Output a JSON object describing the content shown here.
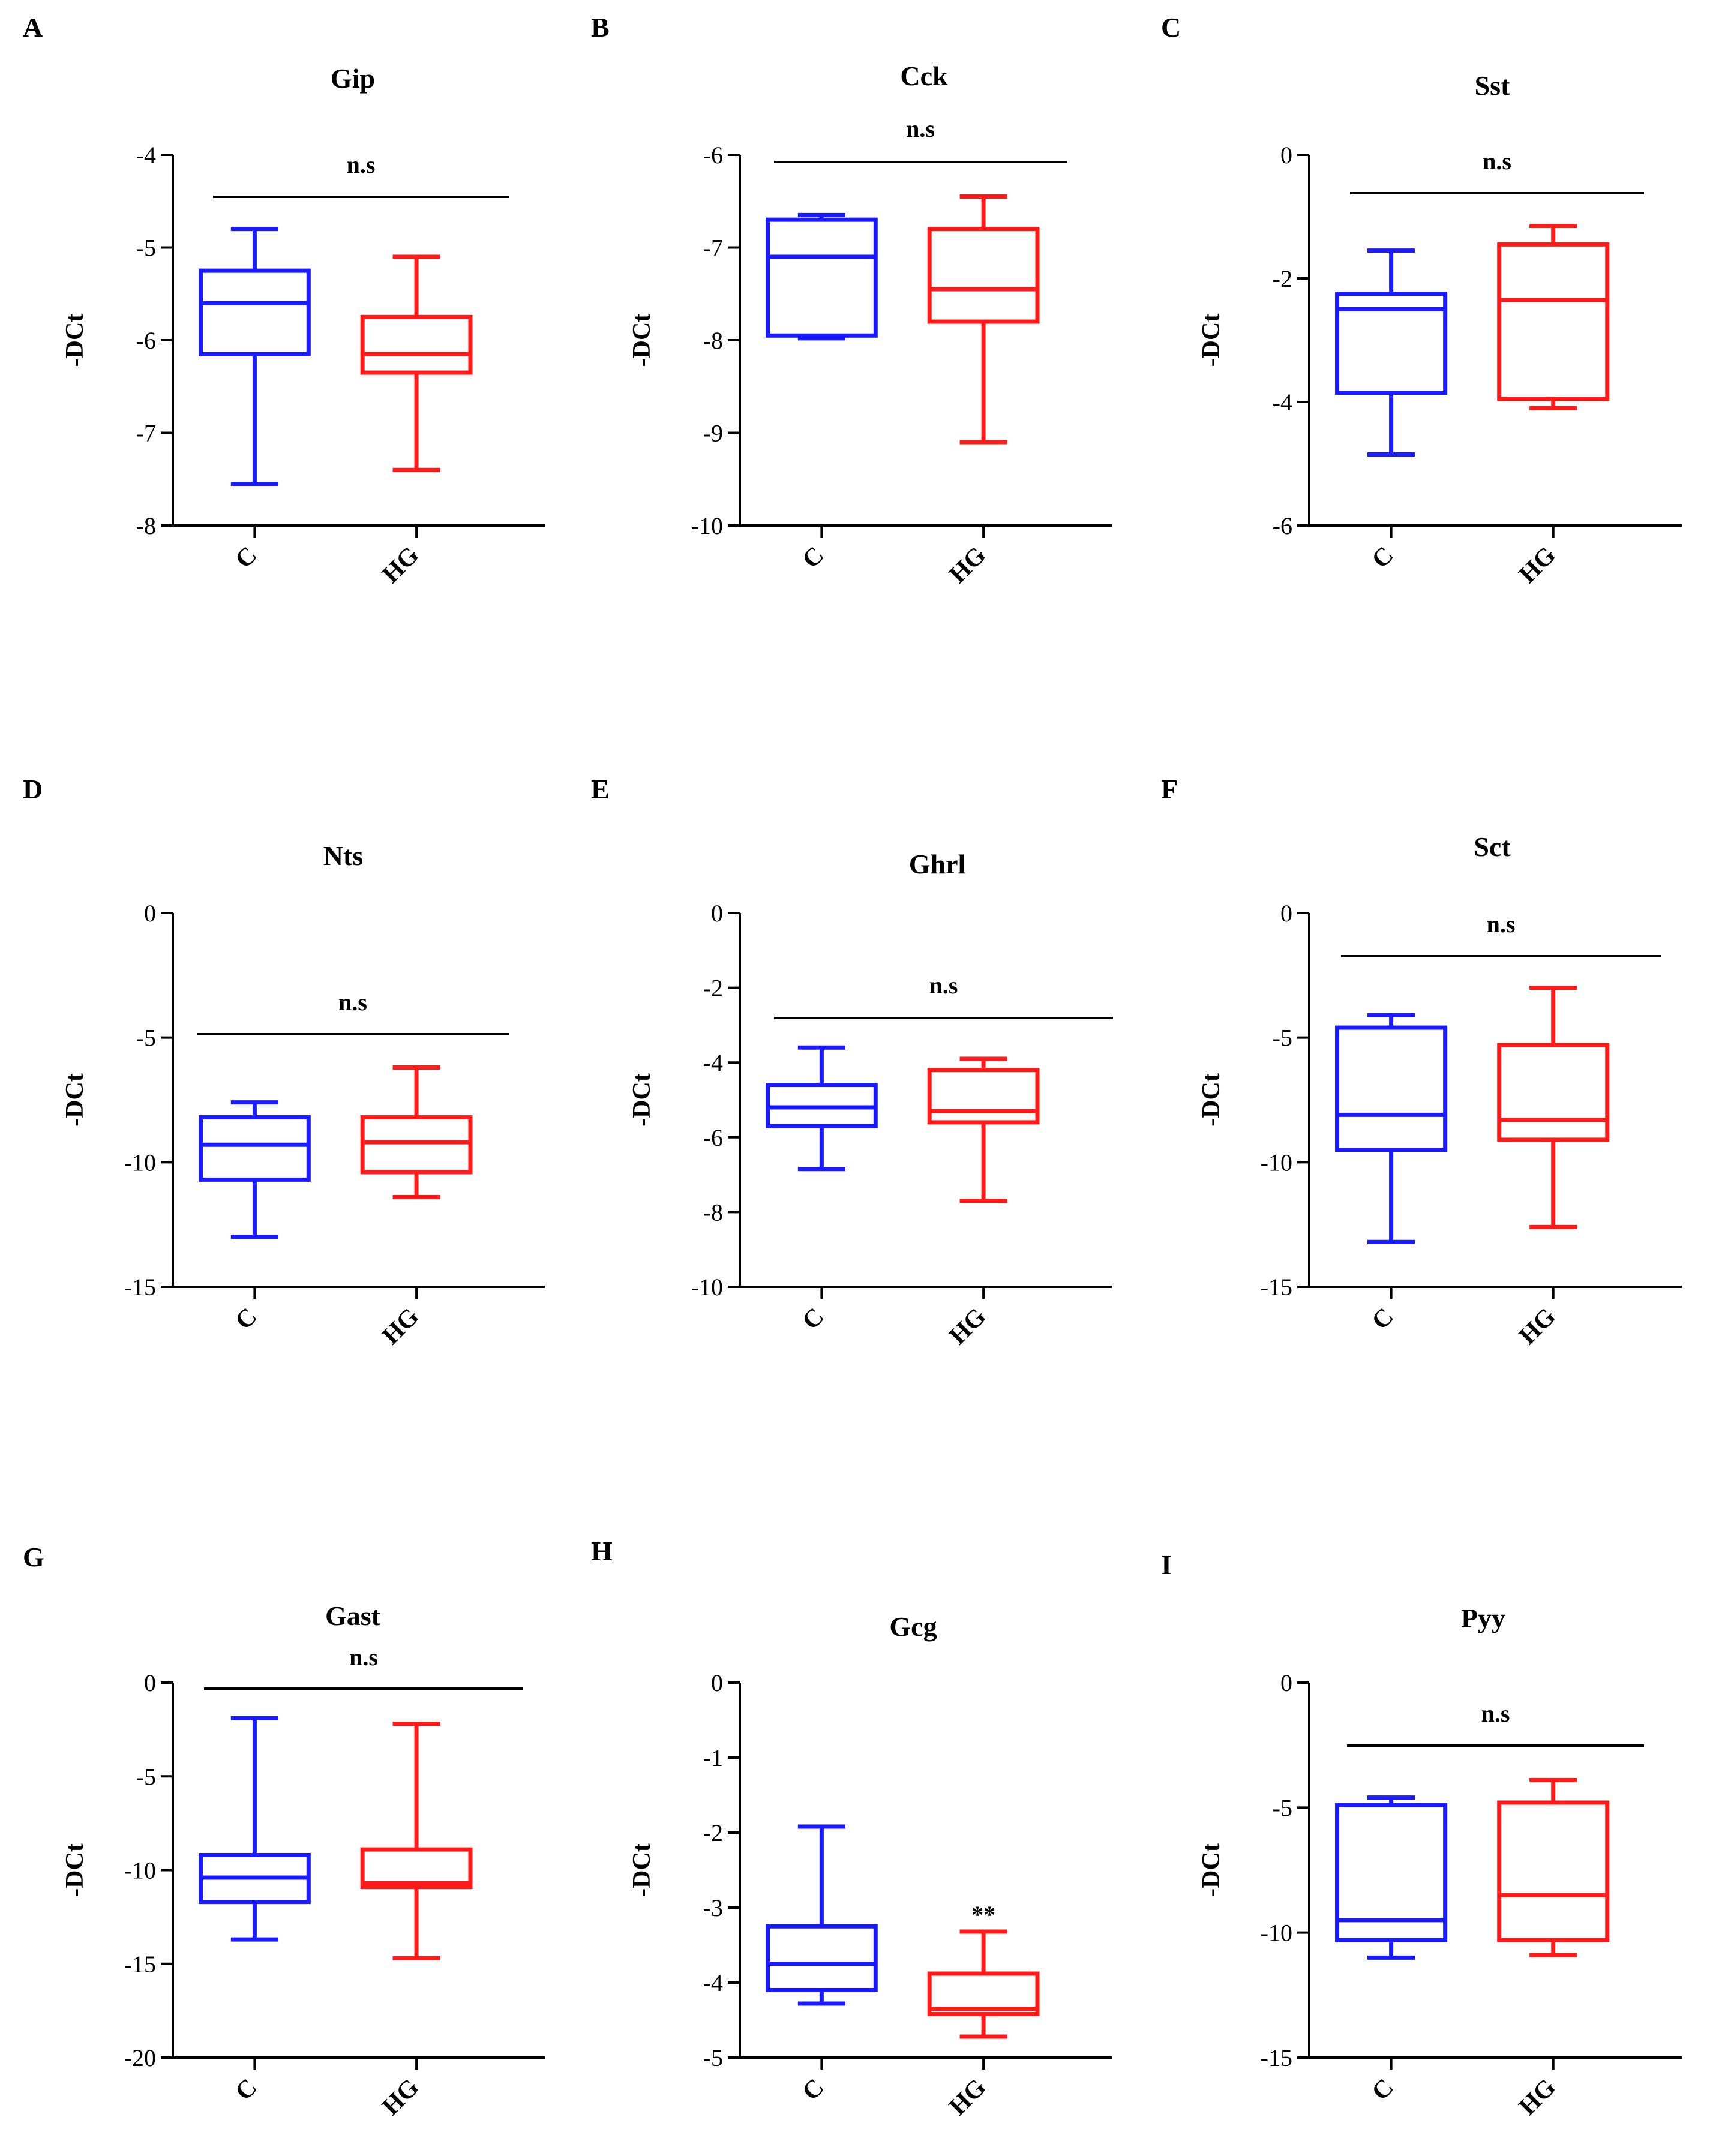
{
  "figure": {
    "y_label": "-DCt"
  },
  "chart_data": [
    {
      "letter": "A",
      "type": "box",
      "title": "Gip",
      "ylabel": "-DCt",
      "ylim": [
        -8,
        -4
      ],
      "yticks": [
        -8,
        -7,
        -6,
        -5,
        -4
      ],
      "categories": [
        "C",
        "HG"
      ],
      "bracket": "n.s",
      "series": [
        {
          "name": "C",
          "color": "#1a1aff",
          "min": -7.55,
          "q1": -6.15,
          "median": -5.6,
          "q3": -5.25,
          "max": -4.8
        },
        {
          "name": "HG",
          "color": "#ff1a1a",
          "min": -7.4,
          "q1": -6.35,
          "median": -6.15,
          "q3": -5.75,
          "max": -5.1
        }
      ]
    },
    {
      "letter": "B",
      "type": "box",
      "title": "Cck",
      "ylabel": "-DCt",
      "ylim": [
        -10,
        -6
      ],
      "yticks": [
        -10,
        -9,
        -8,
        -7,
        -6
      ],
      "categories": [
        "C",
        "HG"
      ],
      "bracket": "n.s",
      "series": [
        {
          "name": "C",
          "color": "#1a1aff",
          "min": -7.98,
          "q1": -7.95,
          "median": -7.1,
          "q3": -6.7,
          "max": -6.65
        },
        {
          "name": "HG",
          "color": "#ff1a1a",
          "min": -9.1,
          "q1": -7.8,
          "median": -7.45,
          "q3": -6.8,
          "max": -6.45
        }
      ]
    },
    {
      "letter": "C",
      "type": "box",
      "title": "Sst",
      "ylabel": "-DCt",
      "ylim": [
        -6,
        0
      ],
      "yticks": [
        -6,
        -4,
        -2,
        0
      ],
      "categories": [
        "C",
        "HG"
      ],
      "bracket": "n.s",
      "series": [
        {
          "name": "C",
          "color": "#1a1aff",
          "min": -4.85,
          "q1": -3.85,
          "median": -2.5,
          "q3": -2.25,
          "max": -1.55
        },
        {
          "name": "HG",
          "color": "#ff1a1a",
          "min": -4.1,
          "q1": -3.95,
          "median": -2.35,
          "q3": -1.45,
          "max": -1.15
        }
      ]
    },
    {
      "letter": "D",
      "type": "box",
      "title": "Nts",
      "ylabel": "-DCt",
      "ylim": [
        -15,
        0
      ],
      "yticks": [
        -15,
        -10,
        -5,
        0
      ],
      "categories": [
        "C",
        "HG"
      ],
      "bracket": "n.s",
      "series": [
        {
          "name": "C",
          "color": "#1a1aff",
          "min": -13.0,
          "q1": -10.7,
          "median": -9.3,
          "q3": -8.2,
          "max": -7.6
        },
        {
          "name": "HG",
          "color": "#ff1a1a",
          "min": -11.4,
          "q1": -10.4,
          "median": -9.2,
          "q3": -8.2,
          "max": -6.2
        }
      ]
    },
    {
      "letter": "E",
      "type": "box",
      "title": "Ghrl",
      "ylabel": "-DCt",
      "ylim": [
        -10,
        0
      ],
      "yticks": [
        -10,
        -8,
        -6,
        -4,
        -2,
        0
      ],
      "categories": [
        "C",
        "HG"
      ],
      "bracket": "n.s",
      "series": [
        {
          "name": "C",
          "color": "#1a1aff",
          "min": -6.85,
          "q1": -5.7,
          "median": -5.2,
          "q3": -4.6,
          "max": -3.6
        },
        {
          "name": "HG",
          "color": "#ff1a1a",
          "min": -7.7,
          "q1": -5.6,
          "median": -5.3,
          "q3": -4.2,
          "max": -3.9
        }
      ]
    },
    {
      "letter": "F",
      "type": "box",
      "title": "Sct",
      "ylabel": "-DCt",
      "ylim": [
        -15,
        0
      ],
      "yticks": [
        -15,
        -10,
        -5,
        0
      ],
      "categories": [
        "C",
        "HG"
      ],
      "bracket": "n.s",
      "series": [
        {
          "name": "C",
          "color": "#1a1aff",
          "min": -13.2,
          "q1": -9.5,
          "median": -8.1,
          "q3": -4.6,
          "max": -4.1
        },
        {
          "name": "HG",
          "color": "#ff1a1a",
          "min": -12.6,
          "q1": -9.1,
          "median": -8.3,
          "q3": -5.3,
          "max": -3.0
        }
      ]
    },
    {
      "letter": "G",
      "type": "box",
      "title": "Gast",
      "ylabel": "-DCt",
      "ylim": [
        -20,
        0
      ],
      "yticks": [
        -20,
        -15,
        -10,
        -5,
        0
      ],
      "categories": [
        "C",
        "HG"
      ],
      "bracket": "n.s",
      "series": [
        {
          "name": "C",
          "color": "#1a1aff",
          "min": -13.7,
          "q1": -11.7,
          "median": -10.4,
          "q3": -9.2,
          "max": -1.9
        },
        {
          "name": "HG",
          "color": "#ff1a1a",
          "min": -14.7,
          "q1": -10.9,
          "median": -10.7,
          "q3": -8.9,
          "max": -2.2
        }
      ]
    },
    {
      "letter": "H",
      "type": "box",
      "title": "Gcg",
      "ylabel": "-DCt",
      "ylim": [
        -5,
        0
      ],
      "yticks": [
        -5,
        -4,
        -3,
        -2,
        -1,
        0
      ],
      "categories": [
        "C",
        "HG"
      ],
      "bracket": "",
      "annotation": "**",
      "series": [
        {
          "name": "C",
          "color": "#1a1aff",
          "min": -4.28,
          "q1": -4.1,
          "median": -3.75,
          "q3": -3.25,
          "max": -1.92
        },
        {
          "name": "HG",
          "color": "#ff1a1a",
          "min": -4.72,
          "q1": -4.42,
          "median": -4.35,
          "q3": -3.88,
          "max": -3.32
        }
      ]
    },
    {
      "letter": "I",
      "type": "box",
      "title": "Pyy",
      "ylabel": "-DCt",
      "ylim": [
        -15,
        0
      ],
      "yticks": [
        -15,
        -10,
        -5,
        0
      ],
      "categories": [
        "C",
        "HG"
      ],
      "bracket": "n.s",
      "series": [
        {
          "name": "C",
          "color": "#1a1aff",
          "min": -11.0,
          "q1": -10.3,
          "median": -9.5,
          "q3": -4.9,
          "max": -4.6
        },
        {
          "name": "HG",
          "color": "#ff1a1a",
          "min": -10.9,
          "q1": -10.3,
          "median": -8.5,
          "q3": -4.8,
          "max": -3.9
        }
      ]
    }
  ]
}
